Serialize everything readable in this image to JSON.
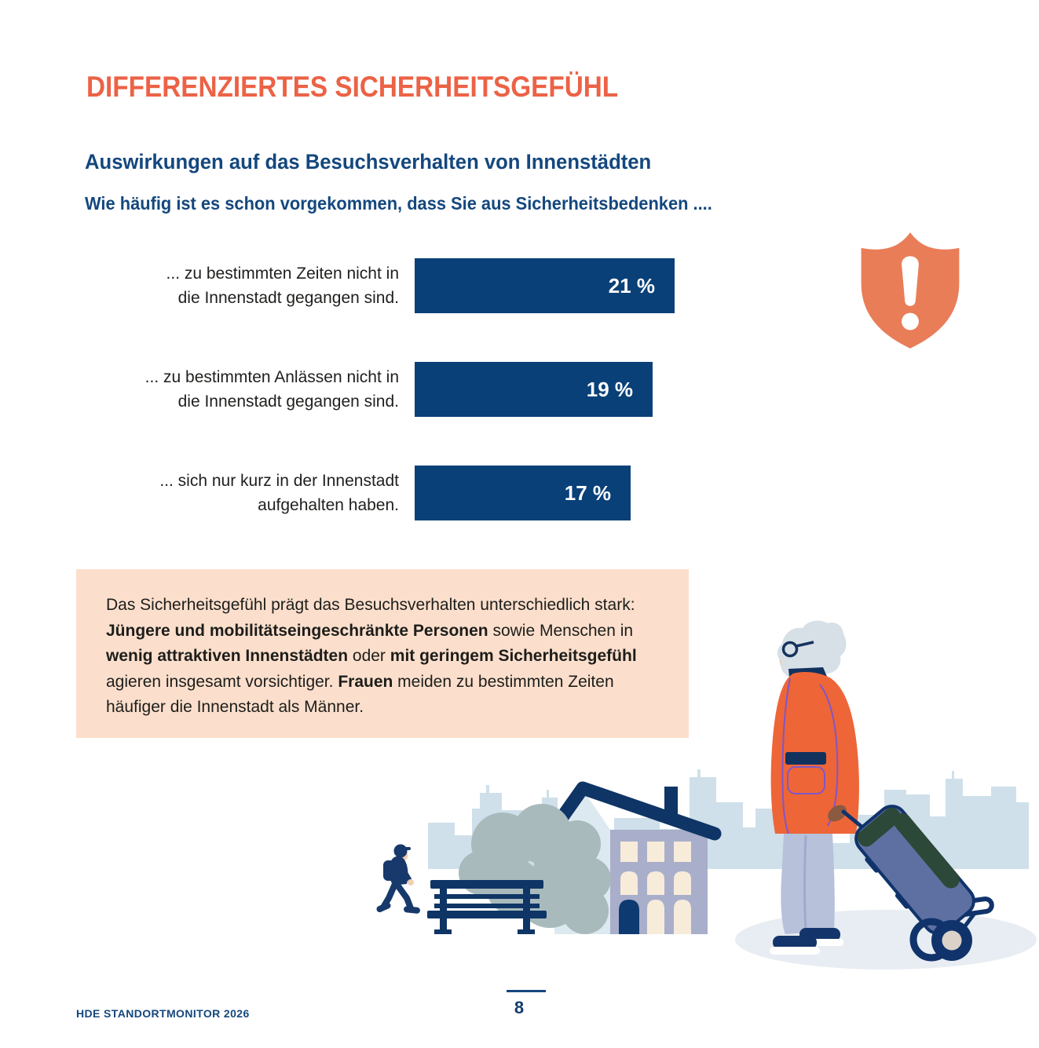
{
  "header": {
    "title": "DIFFERENZIERTES SICHERHEITSGEFÜHL",
    "subtitle": "Auswirkungen auf das Besuchsverhalten von Innenstädten",
    "question": "Wie häufig ist es schon vorgekommen, dass Sie aus Sicherheitsbedenken ...."
  },
  "chart_data": {
    "type": "bar",
    "orientation": "horizontal",
    "categories": [
      "... zu bestimmten Zeiten nicht in die Innenstadt gegangen sind.",
      "... zu bestimmten Anlässen nicht in die Innenstadt gegangen sind.",
      "... sich nur kurz in der Innenstadt aufgehalten haben."
    ],
    "values": [
      21,
      19,
      17
    ],
    "value_labels": [
      "21 %",
      "19 %",
      "17 %"
    ],
    "xlim": [
      0,
      22
    ],
    "bar_color": "#0a4078",
    "value_label_color": "#ffffff",
    "grid": false,
    "legend": false
  },
  "bars": [
    {
      "line1": "... zu bestimmten Zeiten nicht in",
      "line2": "die Innenstadt gegangen sind.",
      "value": 21,
      "value_label": "21 %"
    },
    {
      "line1": "... zu bestimmten Anlässen nicht in",
      "line2": "die Innenstadt gegangen sind.",
      "value": 19,
      "value_label": "19 %"
    },
    {
      "line1": "... sich nur kurz in der Innenstadt",
      "line2": "aufgehalten haben.",
      "value": 17,
      "value_label": "17 %"
    }
  ],
  "info_box": {
    "segments": [
      {
        "text": "Das Sicherheitsgefühl prägt das Besuchsverhalten unterschiedlich stark: ",
        "bold": false
      },
      {
        "text": "Jüngere und mobilitätseingeschränkte Personen",
        "bold": true
      },
      {
        "text": " sowie Menschen in ",
        "bold": false
      },
      {
        "text": "wenig attraktiven Innenstädten",
        "bold": true
      },
      {
        "text": " oder ",
        "bold": false
      },
      {
        "text": "mit geringem Sicherheitsgefühl",
        "bold": true
      },
      {
        "text": " agieren insgesamt vorsichtiger. ",
        "bold": false
      },
      {
        "text": "Frauen",
        "bold": true
      },
      {
        "text": " meiden zu bestimmten Zeiten häufiger die Innenstadt als Männer.",
        "bold": false
      }
    ]
  },
  "footer": {
    "left": "HDE STANDORTMONITOR 2026",
    "page_number": "8"
  },
  "icons": {
    "shield": "shield-alert-icon"
  },
  "colors": {
    "accent_orange": "#ec6246",
    "shield_orange": "#e97d58",
    "heading_blue": "#14477e",
    "bar_blue": "#0a4078",
    "navy_dark": "#0e3565",
    "info_box_bg": "#fbdfcc",
    "body_text": "#1d1d1b",
    "skyline": "#cfe0ea",
    "bush_green": "#a9babd",
    "house_wall_light": "#dde9f0",
    "house_wall_mauve": "#a9aeca",
    "window_cream": "#f7ecda",
    "coat_orange": "#ee6538",
    "trousers_blue": "#b7c1da",
    "trolley_blue": "#5e70a2",
    "trolley_green": "#2c4838",
    "shadow_gray": "#e8edf3",
    "hair_gray": "#d6e0e6",
    "skin": "#f3cbb0"
  }
}
